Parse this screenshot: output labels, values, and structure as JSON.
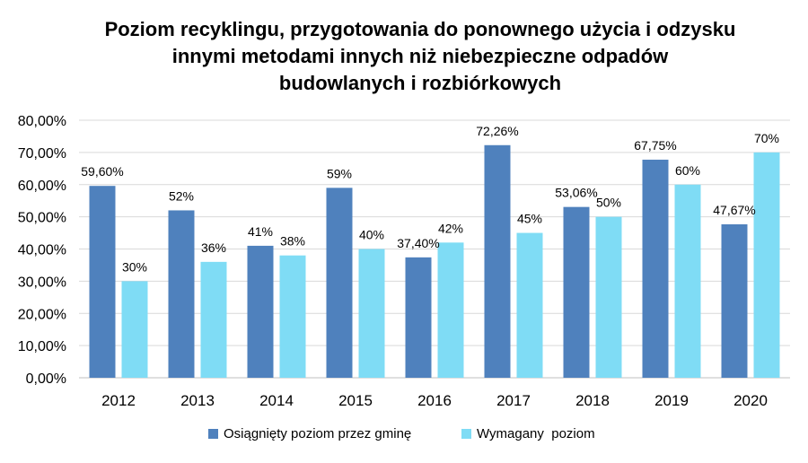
{
  "chart_data": {
    "type": "bar",
    "title": [
      "Poziom recyklingu, przygotowania do ponownego użycia i odzysku",
      "innymi metodami innych niż niebezpieczne odpadów",
      "budowlanych i rozbiórkowych"
    ],
    "categories": [
      "2012",
      "2013",
      "2014",
      "2015",
      "2016",
      "2017",
      "2018",
      "2019",
      "2020"
    ],
    "ylim": [
      0,
      80
    ],
    "yticks": [
      0,
      10,
      20,
      30,
      40,
      50,
      60,
      70,
      80
    ],
    "ytick_labels": [
      "0,00%",
      "10,00%",
      "20,00%",
      "30,00%",
      "40,00%",
      "50,00%",
      "60,00%",
      "70,00%",
      "80,00%"
    ],
    "grid": true,
    "legend_position": "bottom",
    "series": [
      {
        "name": "Osiągnięty poziom przez gminę",
        "color": "#4f81bd",
        "values": [
          59.6,
          52,
          41,
          59,
          37.4,
          72.26,
          53.06,
          67.75,
          47.67
        ],
        "labels": [
          "59,60%",
          "52%",
          "41%",
          "59%",
          "37,40%",
          "72,26%",
          "53,06%",
          "67,75%",
          "47,67%"
        ]
      },
      {
        "name": "Wymagany  poziom",
        "color": "#7fdcf5",
        "values": [
          30,
          36,
          38,
          40,
          42,
          45,
          50,
          60,
          70
        ],
        "labels": [
          "30%",
          "36%",
          "38%",
          "40%",
          "42%",
          "45%",
          "50%",
          "60%",
          "70%"
        ]
      }
    ]
  }
}
